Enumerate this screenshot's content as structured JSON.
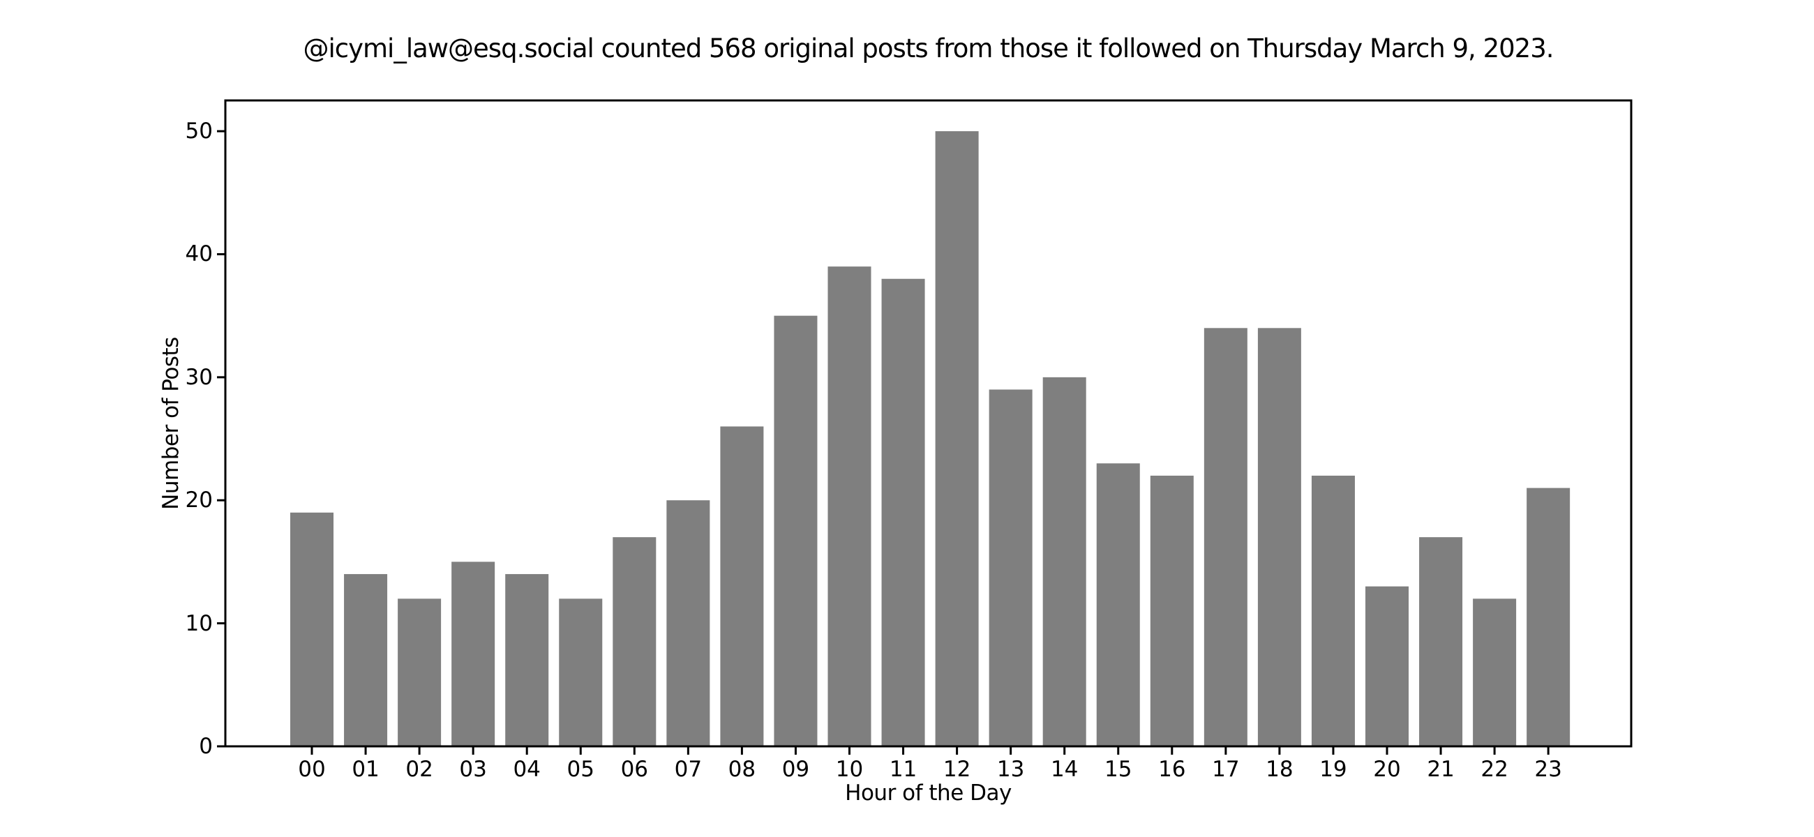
{
  "chart_data": {
    "type": "bar",
    "title": "@icymi_law@esq.social counted 568 original posts from those it followed on Thursday March 9, 2023.",
    "xlabel": "Hour of the Day",
    "ylabel": "Number of Posts",
    "categories": [
      "00",
      "01",
      "02",
      "03",
      "04",
      "05",
      "06",
      "07",
      "08",
      "09",
      "10",
      "11",
      "12",
      "13",
      "14",
      "15",
      "16",
      "17",
      "18",
      "19",
      "20",
      "21",
      "22",
      "23"
    ],
    "values": [
      19,
      14,
      12,
      15,
      14,
      12,
      17,
      20,
      26,
      35,
      39,
      38,
      50,
      29,
      30,
      23,
      22,
      34,
      34,
      22,
      13,
      17,
      12,
      21
    ],
    "total_posts": 568,
    "ylim": [
      0,
      52.5
    ],
    "yticks": [
      0,
      10,
      20,
      30,
      40,
      50
    ],
    "bar_color": "#7f7f7f",
    "axis_color": "#000000",
    "text_color": "#000000",
    "background": "#ffffff",
    "grid": false,
    "legend": null
  }
}
